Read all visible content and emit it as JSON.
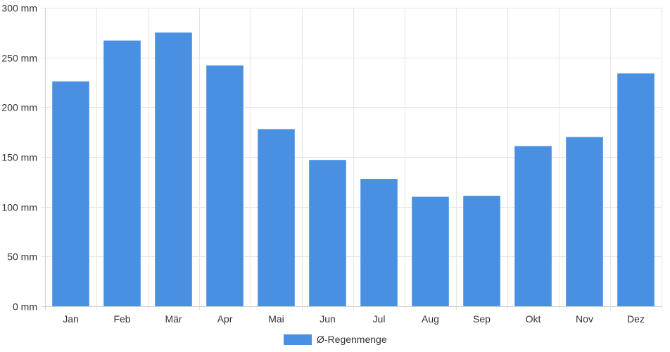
{
  "chart_data": {
    "type": "bar",
    "categories": [
      "Jan",
      "Feb",
      "Mär",
      "Apr",
      "Mai",
      "Jun",
      "Jul",
      "Aug",
      "Sep",
      "Okt",
      "Nov",
      "Dez"
    ],
    "series": [
      {
        "name": "Ø-Regenmenge",
        "values": [
          226,
          267,
          275,
          242,
          178,
          147,
          128,
          110,
          111,
          161,
          170,
          234
        ],
        "color": "#4a90e2"
      }
    ],
    "y_unit": "mm",
    "ylim": [
      0,
      300
    ],
    "yticks": [
      0,
      50,
      100,
      150,
      200,
      250,
      300
    ],
    "ytick_labels": [
      "0 mm",
      "50 mm",
      "100 mm",
      "150 mm",
      "200 mm",
      "250 mm",
      "300 mm"
    ],
    "grid": true,
    "legend_position": "bottom-center",
    "colors": {
      "bar": "#4a90e2",
      "grid": "#e5e5e5",
      "axis": "#d0d0d0",
      "text": "#333333"
    }
  }
}
